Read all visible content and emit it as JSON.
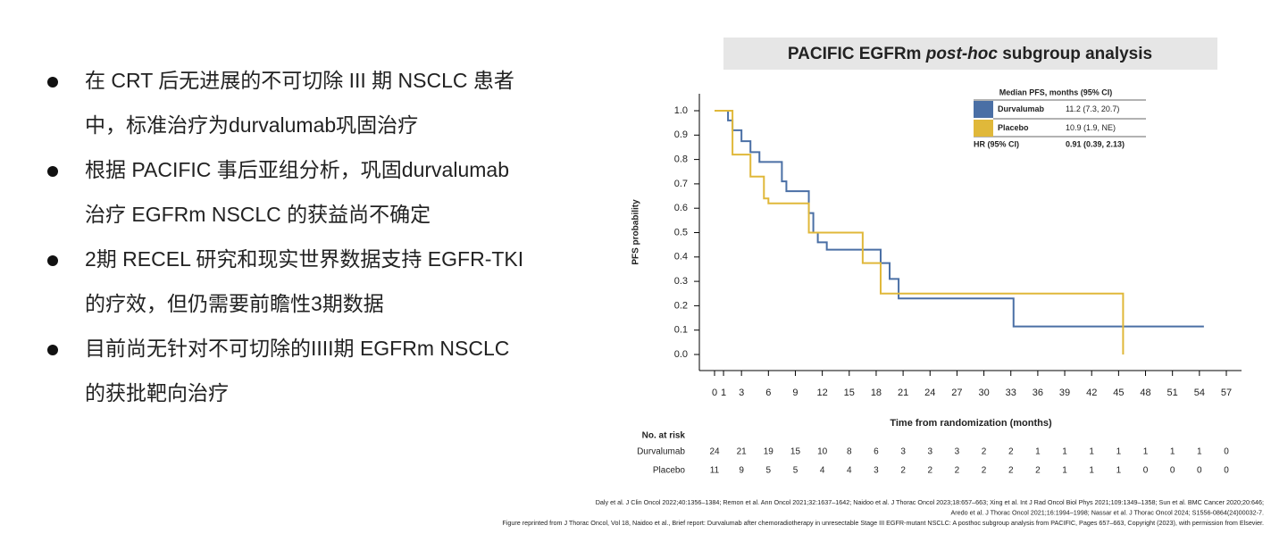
{
  "bullets": [
    [
      "在 CRT 后无进展的不可切除 III 期 NSCLC 患者",
      "中，标准治疗为durvalumab巩固治疗"
    ],
    [
      "根据 PACIFIC 事后亚组分析，巩固durvalumab",
      "治疗 EGFRm NSCLC 的获益尚不确定"
    ],
    [
      "2期 RECEL 研究和现实世界数据支持 EGFR-TKI",
      "的疗效，但仍需要前瞻性3期数据"
    ],
    [
      "目前尚无针对不可切除的IIII期 EGFRm NSCLC",
      "的获批靶向治疗"
    ]
  ],
  "chart_data": {
    "type": "line",
    "title_parts": [
      "PACIFIC EGFRm ",
      "post-hoc",
      " subgroup analysis"
    ],
    "x_label": "Time from randomization (months)",
    "y_label": "PFS probability",
    "xlim": [
      0,
      57
    ],
    "xticks": [
      0,
      1,
      3,
      6,
      9,
      12,
      15,
      18,
      21,
      24,
      27,
      30,
      33,
      36,
      39,
      42,
      45,
      48,
      51,
      54,
      57
    ],
    "ylim": [
      0,
      1
    ],
    "yticks": [
      {
        "value": 0,
        "label": "0.0"
      },
      0.1,
      0.2,
      0.3,
      0.4,
      0.5,
      0.6,
      0.7,
      0.8,
      0.9,
      {
        "value": 1,
        "label": "1.0"
      }
    ],
    "legend_header": "Median PFS, months (95% CI)",
    "hr_label": "HR (95% CI)",
    "hr_value": "0.91 (0.39, 2.13)",
    "series": [
      {
        "name": "Durvalumab",
        "color": "#4a6fa5",
        "median": "11.2 (7.3, 20.7)",
        "x": [
          0,
          1.5,
          1.5,
          2,
          2,
          3,
          3,
          4,
          4,
          5,
          5,
          7.5,
          7.5,
          8,
          8,
          10.5,
          10.5,
          11,
          11,
          11.5,
          11.5,
          12.5,
          12.5,
          18.5,
          18.5,
          19.5,
          19.5,
          20.5,
          20.5,
          33.3,
          33.3,
          54.5
        ],
        "values": [
          1,
          1,
          0.96,
          0.96,
          0.92,
          0.92,
          0.875,
          0.875,
          0.83,
          0.83,
          0.79,
          0.79,
          0.71,
          0.71,
          0.67,
          0.67,
          0.58,
          0.58,
          0.5,
          0.5,
          0.46,
          0.46,
          0.43,
          0.43,
          0.375,
          0.375,
          0.31,
          0.31,
          0.23,
          0.23,
          0.115,
          0.115
        ]
      },
      {
        "name": "Placebo",
        "color": "#e0b83a",
        "median": "10.9 (1.9, NE)",
        "x": [
          0,
          2,
          2,
          4,
          4,
          5.5,
          5.5,
          6,
          6,
          10.5,
          10.5,
          16.5,
          16.5,
          18.5,
          18.5,
          45.5,
          45.5
        ],
        "values": [
          1,
          1,
          0.82,
          0.82,
          0.73,
          0.73,
          0.64,
          0.64,
          0.62,
          0.62,
          0.5,
          0.5,
          0.375,
          0.375,
          0.25,
          0.25,
          0
        ]
      }
    ],
    "risk_table": {
      "title": "No. at risk",
      "times": [
        0,
        3,
        6,
        9,
        12,
        15,
        18,
        21,
        24,
        27,
        30,
        33,
        36,
        39,
        42,
        45,
        48,
        51,
        54,
        57
      ],
      "rows": [
        {
          "name": "Durvalumab",
          "values": [
            24,
            21,
            19,
            15,
            10,
            8,
            6,
            3,
            3,
            3,
            2,
            2,
            1,
            1,
            1,
            1,
            1,
            1,
            1,
            0
          ]
        },
        {
          "name": "Placebo",
          "values": [
            11,
            9,
            5,
            5,
            4,
            4,
            3,
            2,
            2,
            2,
            2,
            2,
            2,
            1,
            1,
            1,
            0,
            0,
            0,
            0
          ]
        }
      ]
    }
  },
  "references": [
    "Daly et al. J Clin Oncol 2022;40:1356–1384; Remon et al. Ann Oncol 2021;32:1637–1642; Naidoo et al. J Thorac Oncol 2023;18:657–663; Xing et al. Int J Rad Oncol Biol Phys 2021;109:1349–1358; Sun et al. BMC Cancer 2020;20:646;",
    "Aredo et al. J Thorac Oncol 2021;16:1994–1998; Nassar et al. J Thorac Oncol 2024; S1556-0864(24)00032-7.",
    "Figure reprinted from J Thorac Oncol, Vol 18, Naidoo et al., Brief report: Durvalumab after chemoradiotherapy in unresectable Stage III EGFR-mutant NSCLC: A posthoc subgroup analysis from PACIFIC, Pages 657–663, Copyright (2023), with permission from Elsevier."
  ]
}
